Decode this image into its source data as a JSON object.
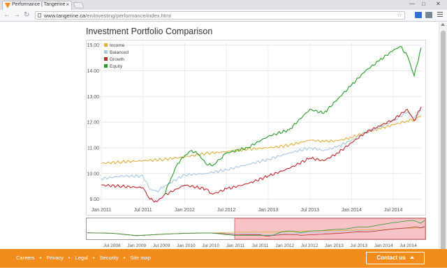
{
  "browser": {
    "tab_title": "Performance | Tangerine",
    "url_host": "www.tangerine.ca",
    "url_path": "/en/investing/performance/index.html",
    "tab_close": "×"
  },
  "page": {
    "title": "Investment Portfolio Comparison"
  },
  "footer": {
    "links": [
      "Careers",
      "Privacy",
      "Legal",
      "Security",
      "Site map"
    ],
    "separator": "•",
    "contact_label": "Contact us"
  },
  "colors": {
    "brand_orange": "#f28c1d",
    "income": "#e0b040",
    "balanced": "#a8c8e8",
    "growth": "#c0282c",
    "equity": "#2a9a2a",
    "nav_selection": "#f3a3a8"
  },
  "chart_data": {
    "type": "line",
    "legend_placement": "top-left",
    "grid": true,
    "ylim": [
      8.8,
      15.1
    ],
    "y_ticks": [
      "9.00",
      "10.00",
      "11.00",
      "12.00",
      "13.00",
      "14.00",
      "15.00"
    ],
    "x_ticks": [
      "Jan 2011",
      "Jul 2011",
      "Jan 2012",
      "Jul 2012",
      "Jan 2013",
      "Jul 2013",
      "Jan 2014",
      "Jul 2014"
    ],
    "x_start": "Jan 2011",
    "x_end": "Nov 2014",
    "series": [
      {
        "name": "Income",
        "color": "#e0b040",
        "points": [
          [
            0,
            10.4
          ],
          [
            3,
            10.45
          ],
          [
            6,
            10.5
          ],
          [
            9,
            10.55
          ],
          [
            12,
            10.65
          ],
          [
            15,
            10.78
          ],
          [
            18,
            10.85
          ],
          [
            21,
            10.95
          ],
          [
            24,
            11.0
          ],
          [
            27,
            11.1
          ],
          [
            30,
            11.3
          ],
          [
            32,
            11.25
          ],
          [
            34,
            11.28
          ],
          [
            36,
            11.4
          ],
          [
            38,
            11.6
          ],
          [
            40,
            11.75
          ],
          [
            42,
            11.9
          ],
          [
            44,
            12.05
          ],
          [
            45,
            12.1
          ],
          [
            46,
            12.25
          ]
        ]
      },
      {
        "name": "Balanced",
        "color": "#a8c8e8",
        "points": [
          [
            0,
            9.8
          ],
          [
            3,
            9.9
          ],
          [
            6,
            9.9
          ],
          [
            7,
            9.4
          ],
          [
            8,
            9.3
          ],
          [
            9,
            9.5
          ],
          [
            12,
            9.95
          ],
          [
            15,
            10.0
          ],
          [
            18,
            10.15
          ],
          [
            21,
            10.35
          ],
          [
            24,
            10.55
          ],
          [
            27,
            10.8
          ],
          [
            30,
            11.0
          ],
          [
            32,
            10.9
          ],
          [
            34,
            11.05
          ],
          [
            36,
            11.3
          ],
          [
            38,
            11.6
          ],
          [
            40,
            11.8
          ],
          [
            42,
            12.05
          ],
          [
            44,
            12.4
          ],
          [
            45,
            12.15
          ],
          [
            46,
            12.45
          ]
        ]
      },
      {
        "name": "Growth",
        "color": "#c0282c",
        "points": [
          [
            0,
            9.55
          ],
          [
            3,
            9.5
          ],
          [
            6,
            9.45
          ],
          [
            7,
            9.0
          ],
          [
            8,
            8.9
          ],
          [
            9,
            9.15
          ],
          [
            12,
            9.55
          ],
          [
            15,
            9.4
          ],
          [
            16,
            9.2
          ],
          [
            18,
            9.4
          ],
          [
            21,
            9.6
          ],
          [
            24,
            9.9
          ],
          [
            27,
            10.2
          ],
          [
            30,
            10.6
          ],
          [
            32,
            10.5
          ],
          [
            34,
            10.8
          ],
          [
            36,
            11.2
          ],
          [
            38,
            11.6
          ],
          [
            40,
            11.85
          ],
          [
            42,
            12.1
          ],
          [
            44,
            12.5
          ],
          [
            45,
            12.05
          ],
          [
            46,
            12.6
          ]
        ]
      },
      {
        "name": "Equity",
        "color": "#2a9a2a",
        "points": [
          [
            9,
            9.15
          ],
          [
            10,
            9.8
          ],
          [
            11,
            10.4
          ],
          [
            12,
            10.7
          ],
          [
            13,
            10.9
          ],
          [
            14,
            10.75
          ],
          [
            15,
            10.4
          ],
          [
            16,
            10.3
          ],
          [
            17,
            10.55
          ],
          [
            18,
            10.8
          ],
          [
            21,
            11.0
          ],
          [
            24,
            11.45
          ],
          [
            27,
            11.7
          ],
          [
            30,
            12.5
          ],
          [
            32,
            12.35
          ],
          [
            34,
            12.9
          ],
          [
            36,
            13.45
          ],
          [
            38,
            14.0
          ],
          [
            40,
            14.4
          ],
          [
            42,
            14.8
          ],
          [
            43,
            14.95
          ],
          [
            44,
            14.6
          ],
          [
            45,
            13.8
          ],
          [
            46,
            14.9
          ]
        ]
      }
    ]
  },
  "navigator": {
    "x_ticks": [
      "Jul 2008",
      "Jan 2009",
      "Jul 2009",
      "Jan 2010",
      "Jul 2010",
      "Jan 2011",
      "Jul 2011",
      "Jan 2012",
      "Jul 2012",
      "Jan 2013",
      "Jul 2013",
      "Jan 2014",
      "Jul 2014"
    ],
    "selected_from": "Jan 2011",
    "selected_to": "Nov 2014"
  }
}
